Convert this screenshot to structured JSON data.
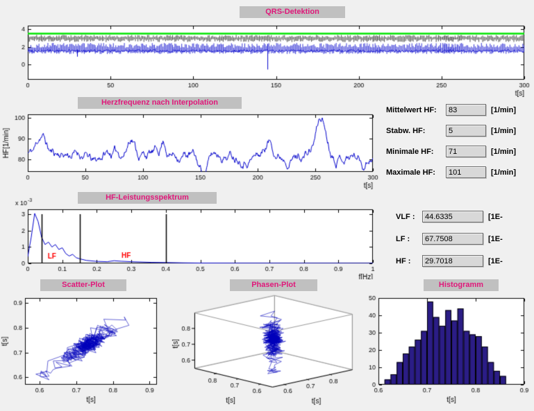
{
  "window": {
    "background": "#f0f0f0",
    "title_bg": "#c0c0c0",
    "title_color": "#e0187a",
    "plot_bg": "#ffffff",
    "signal_blue": "#0000cc"
  },
  "panels": {
    "qrs": {
      "title": "QRS-Detektion"
    },
    "heart_rate": {
      "title": "Herzfrequenz nach Interpolation"
    },
    "spectrum": {
      "title": "HF-Leistungsspektrum"
    },
    "scatter": {
      "title": "Scatter-Plot"
    },
    "phase": {
      "title": "Phasen-Plot"
    },
    "histogram": {
      "title": "Histogramm"
    }
  },
  "stats_hf": {
    "rows": [
      {
        "label": "Mittelwert HF:",
        "value": "83",
        "unit": "[1/min]"
      },
      {
        "label": "Stabw. HF:",
        "value": "5",
        "unit": "[1/min]"
      },
      {
        "label": "Minimale HF:",
        "value": "71",
        "unit": "[1/min]"
      },
      {
        "label": "Maximale HF:",
        "value": "101",
        "unit": "[1/min]"
      }
    ]
  },
  "stats_power": {
    "rows": [
      {
        "label": "VLF :",
        "value": "44.6335",
        "unit": "[1E-"
      },
      {
        "label": "LF :",
        "value": "67.7508",
        "unit": "[1E-"
      },
      {
        "label": "HF :",
        "value": "29.7018",
        "unit": "[1E-"
      }
    ]
  },
  "chart_data": [
    {
      "id": "qrs",
      "type": "line",
      "title": "QRS-Detektion",
      "xlabel": "t[s]",
      "xlim": [
        0,
        300
      ],
      "ylim": [
        -1.7,
        4.4
      ],
      "xticks": [
        0,
        50,
        100,
        150,
        200,
        250,
        300
      ],
      "xtick_labels": [
        "0",
        "50",
        "100",
        "150",
        "200",
        "250",
        "300"
      ],
      "yticks": [
        0,
        2,
        4
      ],
      "ytick_labels": [
        "0",
        "2",
        "4"
      ],
      "signal_color": "#0000cc",
      "marker_color": "#1a1a1a",
      "threshold_line": {
        "y": 3.5,
        "color": "#00e400",
        "width": 2.5
      },
      "baseline_level": 1.55,
      "spike_top_range": [
        1.9,
        2.45
      ],
      "marker_span": [
        2.55,
        3.35
      ],
      "artifacts": [
        {
          "t": 145,
          "y_min": -0.55,
          "y_max": 2.3
        },
        {
          "t": 30,
          "y_min": 0.9,
          "y_max": 1.7
        }
      ],
      "seed": 99
    },
    {
      "id": "heart_rate",
      "type": "line",
      "title": "Herzfrequenz nach Interpolation",
      "xlabel": "t[s]",
      "ylabel": "HF[1/min]",
      "xlim": [
        0,
        300
      ],
      "ylim": [
        74,
        101.7
      ],
      "xticks": [
        0,
        50,
        100,
        150,
        200,
        250,
        300
      ],
      "xtick_labels": [
        "0",
        "50",
        "100",
        "150",
        "200",
        "250",
        "300"
      ],
      "yticks": [
        80,
        90,
        100
      ],
      "ytick_labels": [
        "80",
        "90",
        "100"
      ],
      "line_color": "#0000cc",
      "stats": {
        "mean": 83,
        "std": 5,
        "min": 71,
        "max": 101
      },
      "bumps": [
        {
          "t": 12,
          "amp": 9,
          "w": 5
        },
        {
          "t": 58,
          "amp": -5,
          "w": 6
        },
        {
          "t": 90,
          "amp": 9,
          "w": 4
        },
        {
          "t": 118,
          "amp": 6,
          "w": 3
        },
        {
          "t": 152,
          "amp": -9,
          "w": 6
        },
        {
          "t": 210,
          "amp": 6,
          "w": 5
        },
        {
          "t": 255,
          "amp": 17,
          "w": 6
        },
        {
          "t": 292,
          "amp": -4,
          "w": 4
        }
      ],
      "seed": 11
    },
    {
      "id": "spectrum",
      "type": "line",
      "title": "HF-Leistungsspektrum",
      "xlabel": "f[Hz]",
      "scale_label": {
        "base": "x 10",
        "exp": "-3"
      },
      "xlim": [
        0,
        1
      ],
      "ylim_e3": [
        0,
        3.3
      ],
      "xticks": [
        0,
        0.1,
        0.2,
        0.3,
        0.4,
        0.5,
        0.6,
        0.7,
        0.8,
        0.9,
        1
      ],
      "xtick_labels": [
        "0",
        "0.1",
        "0.2",
        "0.3",
        "0.4",
        "0.5",
        "0.6",
        "0.7",
        "0.8",
        "0.9",
        "1"
      ],
      "yticks_e3": [
        0,
        1,
        2,
        3
      ],
      "ytick_labels": [
        "0",
        "1",
        "2",
        "3"
      ],
      "line_color": "#0000cc",
      "points_e3": [
        [
          0,
          0.4
        ],
        [
          0.01,
          1.6
        ],
        [
          0.02,
          3.05
        ],
        [
          0.03,
          2.55
        ],
        [
          0.04,
          1.6
        ],
        [
          0.05,
          1.15
        ],
        [
          0.06,
          1.3
        ],
        [
          0.07,
          1.0
        ],
        [
          0.08,
          1.15
        ],
        [
          0.09,
          0.85
        ],
        [
          0.1,
          0.95
        ],
        [
          0.11,
          0.6
        ],
        [
          0.12,
          0.45
        ],
        [
          0.13,
          0.55
        ],
        [
          0.14,
          0.35
        ],
        [
          0.15,
          0.28
        ],
        [
          0.17,
          0.18
        ],
        [
          0.2,
          0.12
        ],
        [
          0.23,
          0.1
        ],
        [
          0.25,
          0.16
        ],
        [
          0.27,
          0.13
        ],
        [
          0.3,
          0.1
        ],
        [
          0.33,
          0.08
        ],
        [
          0.36,
          0.06
        ],
        [
          0.4,
          0.05
        ],
        [
          0.45,
          0.03
        ],
        [
          0.5,
          0.02
        ],
        [
          0.6,
          0.015
        ],
        [
          0.7,
          0.012
        ],
        [
          0.8,
          0.01
        ],
        [
          0.9,
          0.008
        ],
        [
          1,
          0.006
        ]
      ],
      "band_lines": {
        "x": [
          0.04,
          0.15,
          0.4
        ],
        "top_e3": 3.0,
        "color": "#000000",
        "width": 1.5
      },
      "annotations": [
        {
          "text": "LF",
          "x": 0.07,
          "y_e3": 0.3,
          "color": "#ff0000"
        },
        {
          "text": "HF",
          "x": 0.285,
          "y_e3": 0.32,
          "color": "#ff0000"
        }
      ]
    },
    {
      "id": "scatter",
      "type": "scatter-line",
      "title": "Scatter-Plot",
      "xlabel": "t[s]",
      "ylabel": "t[s]",
      "xlim": [
        0.56,
        0.92
      ],
      "ylim": [
        0.57,
        0.92
      ],
      "xticks": [
        0.6,
        0.7,
        0.8,
        0.9
      ],
      "xtick_labels": [
        "0.6",
        "0.7",
        "0.8",
        "0.9"
      ],
      "yticks": [
        0.6,
        0.7,
        0.8,
        0.9
      ],
      "ytick_labels": [
        "0.6",
        "0.7",
        "0.8",
        "0.9"
      ],
      "line_color": "#0000bb"
    },
    {
      "id": "phase",
      "type": "line3d",
      "title": "Phasen-Plot",
      "xlabel": "t[s]",
      "ylabel": "t[s]",
      "zlabel": "t[s]",
      "lim": [
        0.55,
        0.9
      ],
      "ticks": [
        0.6,
        0.7,
        0.8
      ],
      "tick_labels": [
        "0.6",
        "0.7",
        "0.8"
      ],
      "line_color": "#0000bb"
    },
    {
      "id": "histogram",
      "type": "bar",
      "title": "Histogramm",
      "xlabel": "t[s]",
      "xlim": [
        0.6,
        0.9
      ],
      "ylim": [
        0,
        50
      ],
      "xticks": [
        0.6,
        0.7,
        0.8,
        0.9
      ],
      "xtick_labels": [
        "0.6",
        "0.7",
        "0.8",
        "0.9"
      ],
      "yticks": [
        0,
        10,
        20,
        30,
        40,
        50
      ],
      "ytick_labels": [
        "0",
        "10",
        "20",
        "30",
        "40",
        "50"
      ],
      "bin_start": 0.6125,
      "bin_width": 0.0125,
      "values": [
        3,
        6,
        13,
        18,
        22,
        26,
        31,
        48,
        39,
        34,
        43,
        37,
        44,
        31,
        29,
        28,
        22,
        13,
        8,
        5
      ],
      "bar_color": "#2b1d86",
      "edge_color": "#000000"
    }
  ]
}
